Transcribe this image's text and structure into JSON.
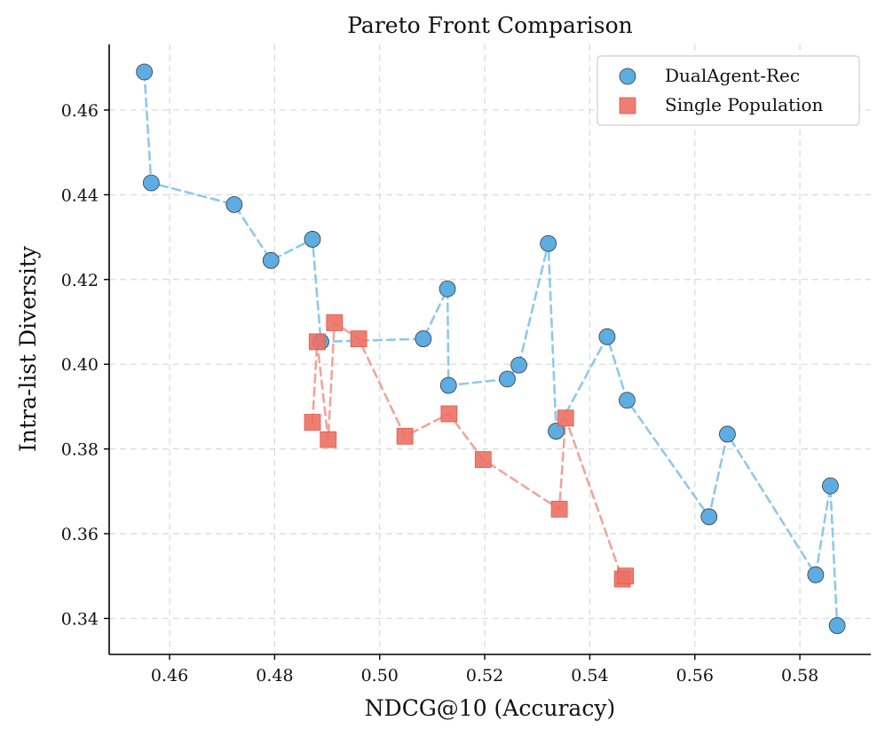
{
  "chart_data": {
    "type": "scatter",
    "title": "Pareto Front Comparison",
    "xlabel": "NDCG@10 (Accuracy)",
    "ylabel": "Intra-list Diversity",
    "xlim": [
      0.4485,
      0.5935
    ],
    "ylim": [
      0.3315,
      0.4755
    ],
    "xticks": [
      0.46,
      0.48,
      0.5,
      0.52,
      0.54,
      0.56,
      0.58
    ],
    "xtick_labels": [
      "0.46",
      "0.48",
      "0.50",
      "0.52",
      "0.54",
      "0.56",
      "0.58"
    ],
    "yticks": [
      0.34,
      0.36,
      0.38,
      0.4,
      0.42,
      0.44,
      0.46
    ],
    "ytick_labels": [
      "0.34",
      "0.36",
      "0.38",
      "0.40",
      "0.42",
      "0.44",
      "0.46"
    ],
    "grid": true,
    "legend_position": "top-right",
    "series": [
      {
        "name": "DualAgent-Rec",
        "marker": "circle",
        "color": "#5DADE2",
        "line_color": "#8EC9EB",
        "x": [
          0.4552,
          0.4565,
          0.4723,
          0.4793,
          0.4872,
          0.4888,
          0.5083,
          0.5129,
          0.5131,
          0.5243,
          0.5265,
          0.5321,
          0.5336,
          0.5433,
          0.5471,
          0.5627,
          0.5662,
          0.583,
          0.5858,
          0.5871
        ],
        "y": [
          0.469,
          0.4428,
          0.4377,
          0.4245,
          0.4295,
          0.4053,
          0.406,
          0.4178,
          0.395,
          0.3965,
          0.3998,
          0.4285,
          0.3842,
          0.4065,
          0.3915,
          0.364,
          0.3835,
          0.3503,
          0.3713,
          0.3383
        ]
      },
      {
        "name": "Single Population",
        "marker": "square",
        "color": "#EC7063",
        "line_color": "#F0A49C",
        "x": [
          0.4872,
          0.4881,
          0.4902,
          0.4914,
          0.496,
          0.5048,
          0.5132,
          0.5197,
          0.5342,
          0.5354,
          0.5462,
          0.5468
        ],
        "y": [
          0.3863,
          0.4053,
          0.3822,
          0.4098,
          0.406,
          0.383,
          0.3883,
          0.3775,
          0.3658,
          0.3873,
          0.3493,
          0.35
        ]
      }
    ]
  }
}
